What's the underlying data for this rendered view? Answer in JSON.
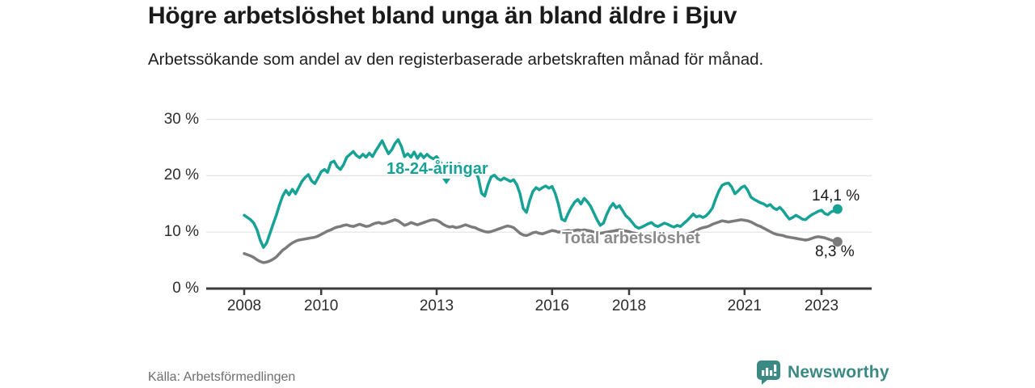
{
  "header": {
    "title": "Högre arbetslöshet bland unga än bland äldre i Bjuv",
    "subtitle": "Arbetssökande som andel av den registerbaserade arbetskraften månad för månad."
  },
  "chart_data": {
    "type": "line",
    "title": "Högre arbetslöshet bland unga än bland äldre i Bjuv",
    "subtitle": "Arbetssökande som andel av den registerbaserade arbetskraften månad för månad.",
    "x_start": 2008,
    "x_step_months": 1,
    "x_end_approx": 2023.42,
    "xlim": [
      2007.0,
      2024.3
    ],
    "ylim": [
      0,
      30
    ],
    "grid": true,
    "x_ticks": [
      2008,
      2010,
      2013,
      2016,
      2018,
      2021,
      2023
    ],
    "x_tick_labels": [
      "2008",
      "2010",
      "2013",
      "2016",
      "2018",
      "2021",
      "2023"
    ],
    "y_ticks": [
      0,
      10,
      20,
      30
    ],
    "y_tick_labels": [
      "0 %",
      "10 %",
      "20 %",
      "30 %"
    ],
    "series": [
      {
        "name": "18-24-åringar",
        "color": "#17A295",
        "end_value": 14.1,
        "end_label": "14,1 %",
        "values": [
          13.0,
          12.6,
          12.2,
          11.6,
          10.4,
          8.6,
          7.3,
          8.1,
          9.7,
          11.4,
          13.0,
          14.8,
          16.4,
          17.4,
          16.6,
          17.6,
          16.8,
          17.9,
          19.0,
          19.7,
          20.2,
          19.1,
          18.6,
          19.6,
          20.7,
          21.1,
          20.6,
          22.3,
          22.6,
          21.6,
          21.1,
          22.0,
          23.3,
          23.8,
          24.3,
          23.6,
          23.2,
          23.8,
          23.3,
          24.0,
          23.4,
          24.4,
          25.3,
          26.2,
          25.0,
          23.9,
          24.6,
          25.7,
          26.4,
          25.2,
          23.4,
          23.9,
          23.3,
          24.2,
          23.1,
          23.9,
          23.2,
          23.8,
          23.3,
          23.0,
          23.4,
          22.6,
          21.7,
          22.0,
          22.4,
          21.9,
          21.7,
          22.1,
          21.8,
          21.5,
          21.9,
          21.4,
          20.9,
          19.6,
          16.9,
          16.4,
          18.4,
          19.8,
          20.1,
          19.5,
          19.2,
          19.6,
          19.3,
          19.0,
          19.3,
          18.4,
          16.8,
          14.2,
          13.5,
          15.6,
          17.2,
          17.9,
          17.5,
          17.9,
          18.2,
          17.8,
          18.1,
          16.8,
          14.9,
          12.3,
          12.0,
          13.3,
          14.4,
          15.3,
          15.8,
          15.0,
          16.0,
          15.4,
          14.6,
          13.4,
          12.2,
          11.2,
          11.6,
          13.1,
          14.3,
          15.1,
          14.3,
          14.7,
          13.8,
          12.9,
          12.4,
          11.7,
          11.0,
          10.7,
          10.9,
          11.2,
          11.5,
          11.7,
          11.2,
          11.0,
          11.3,
          11.6,
          11.4,
          11.1,
          10.9,
          11.2,
          11.0,
          11.5,
          12.0,
          12.6,
          13.2,
          12.7,
          12.9,
          12.6,
          12.9,
          13.5,
          14.3,
          15.9,
          17.3,
          18.3,
          18.6,
          18.7,
          18.0,
          16.8,
          17.3,
          17.9,
          18.2,
          17.4,
          16.2,
          15.8,
          15.5,
          15.2,
          15.0,
          14.6,
          14.9,
          14.3,
          14.0,
          14.4,
          13.8,
          13.0,
          12.3,
          12.6,
          13.0,
          12.7,
          12.3,
          12.2,
          12.7,
          13.1,
          13.4,
          13.7,
          13.9,
          13.3,
          13.1,
          13.6,
          13.8,
          14.1
        ]
      },
      {
        "name": "Total arbetslöshet",
        "color": "#7B7B7B",
        "end_value": 8.3,
        "end_label": "8,3 %",
        "values": [
          6.2,
          6.0,
          5.8,
          5.5,
          5.1,
          4.8,
          4.6,
          4.7,
          4.9,
          5.2,
          5.6,
          6.2,
          6.8,
          7.2,
          7.7,
          8.1,
          8.4,
          8.6,
          8.7,
          8.8,
          8.9,
          9.0,
          9.1,
          9.3,
          9.6,
          9.9,
          10.2,
          10.4,
          10.7,
          10.9,
          11.0,
          11.2,
          11.3,
          11.1,
          11.0,
          11.2,
          11.4,
          11.2,
          11.0,
          11.1,
          11.4,
          11.6,
          11.7,
          11.5,
          11.6,
          11.8,
          12.0,
          12.2,
          12.0,
          11.6,
          11.2,
          11.4,
          11.7,
          11.5,
          11.3,
          11.5,
          11.7,
          11.9,
          12.1,
          12.2,
          12.1,
          11.8,
          11.4,
          11.1,
          10.9,
          11.0,
          10.8,
          10.9,
          11.1,
          11.3,
          11.1,
          10.9,
          10.8,
          10.5,
          10.3,
          10.1,
          10.0,
          10.1,
          10.3,
          10.5,
          10.7,
          10.9,
          11.1,
          11.0,
          10.8,
          10.3,
          9.8,
          9.5,
          9.4,
          9.6,
          9.9,
          10.0,
          9.8,
          9.7,
          9.9,
          10.1,
          10.3,
          10.2,
          10.0,
          10.1,
          10.2,
          10.3,
          10.2,
          10.3,
          10.4,
          10.3,
          10.4,
          10.3,
          10.2,
          10.0,
          9.9,
          9.8,
          9.9,
          10.0,
          10.1,
          10.2,
          10.3,
          10.4,
          10.3,
          10.2,
          10.1,
          9.9,
          9.8,
          9.7,
          9.6,
          9.5,
          9.6,
          9.7,
          9.8,
          9.7,
          9.6,
          9.5,
          9.4,
          9.3,
          9.4,
          9.5,
          9.4,
          9.5,
          9.6,
          9.8,
          10.0,
          10.3,
          10.6,
          10.8,
          10.9,
          11.1,
          11.4,
          11.6,
          11.8,
          12.0,
          11.9,
          11.8,
          11.9,
          12.0,
          12.1,
          12.2,
          12.1,
          12.0,
          11.8,
          11.5,
          11.2,
          11.0,
          10.7,
          10.4,
          10.1,
          9.8,
          9.6,
          9.5,
          9.4,
          9.2,
          9.1,
          9.0,
          8.9,
          8.8,
          8.7,
          8.6,
          8.7,
          8.9,
          9.1,
          9.2,
          9.1,
          9.0,
          8.8,
          8.6,
          8.4,
          8.3
        ]
      }
    ]
  },
  "axis_style": {
    "grid_color": "#E3E3E3",
    "axis_color": "#3A3A3A"
  },
  "footer": {
    "source": "Källa: Arbetsförmedlingen",
    "brand": "Newsworthy",
    "brand_color": "#3A8A83"
  }
}
